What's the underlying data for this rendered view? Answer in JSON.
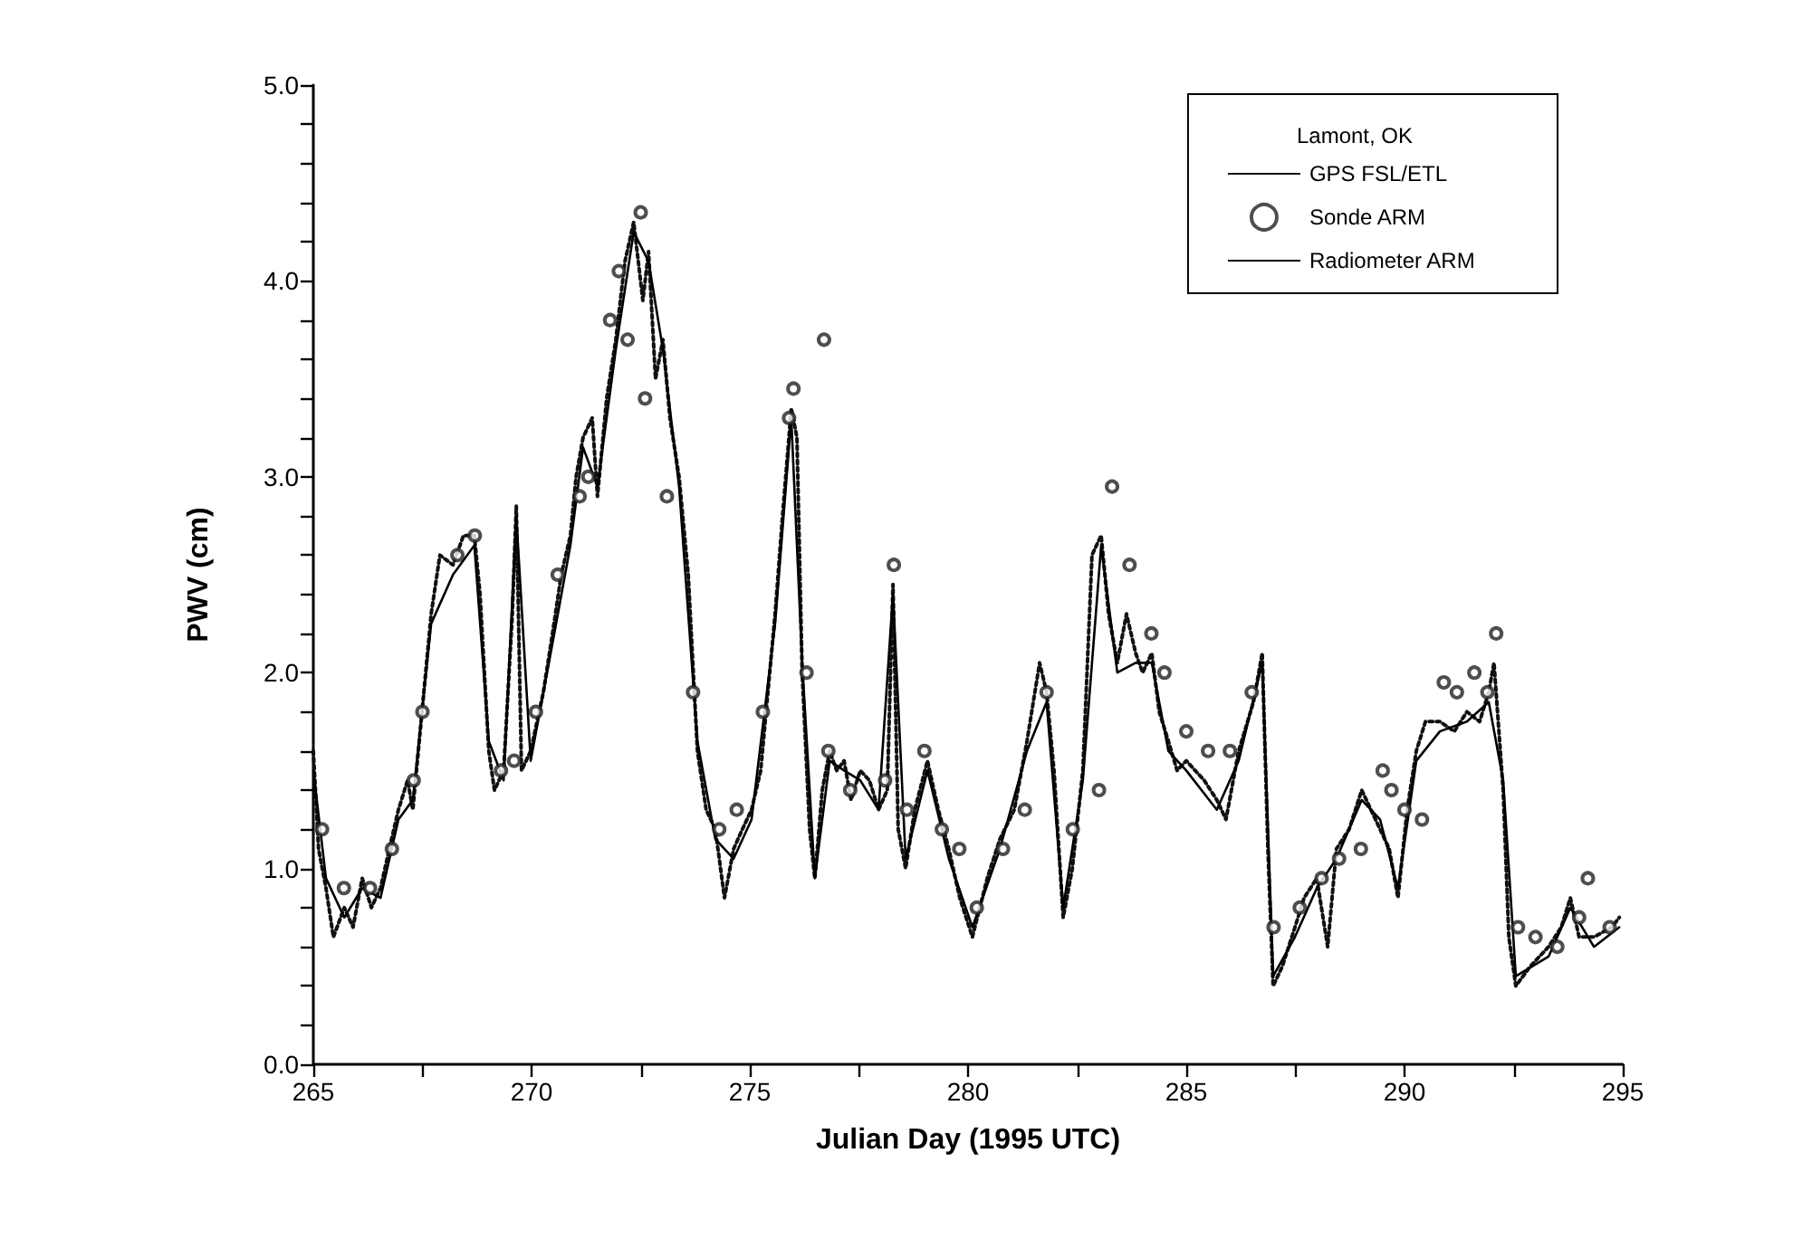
{
  "chart_data": {
    "type": "line",
    "xlabel": "Julian Day (1995 UTC)",
    "ylabel": "PWV (cm)",
    "legend_title": "Lamont, OK",
    "legend": "top right",
    "grid": false,
    "xlim": [
      265,
      295
    ],
    "xticks": [
      265,
      {
        "value": 267.5,
        "label": null
      },
      270,
      {
        "value": 272.5,
        "label": null
      },
      275,
      {
        "value": 277.5,
        "label": null
      },
      280,
      {
        "value": 282.5,
        "label": null
      },
      285,
      {
        "value": 287.5,
        "label": null
      },
      290,
      {
        "value": 292.5,
        "label": null
      },
      295
    ],
    "ylim": [
      0,
      5
    ],
    "yticks": [
      {
        "value": 0,
        "label": "0.0"
      },
      {
        "value": 0.2,
        "label": null
      },
      {
        "value": 0.4,
        "label": null
      },
      {
        "value": 0.6,
        "label": null
      },
      {
        "value": 0.8,
        "label": null
      },
      {
        "value": 1,
        "label": "1.0"
      },
      {
        "value": 1.2,
        "label": null
      },
      {
        "value": 1.4,
        "label": null
      },
      {
        "value": 1.6,
        "label": null
      },
      {
        "value": 1.8,
        "label": null
      },
      {
        "value": 2,
        "label": "2.0"
      },
      {
        "value": 2.2,
        "label": null
      },
      {
        "value": 2.4,
        "label": null
      },
      {
        "value": 2.6,
        "label": null
      },
      {
        "value": 2.8,
        "label": null
      },
      {
        "value": 3,
        "label": "3.0"
      },
      {
        "value": 3.2,
        "label": null
      },
      {
        "value": 3.4,
        "label": null
      },
      {
        "value": 3.6,
        "label": null
      },
      {
        "value": 3.8,
        "label": null
      },
      {
        "value": 4,
        "label": "4.0"
      },
      {
        "value": 4.2,
        "label": null
      },
      {
        "value": 4.4,
        "label": null
      },
      {
        "value": 4.6,
        "label": null
      },
      {
        "value": 4.8,
        "label": null
      },
      {
        "value": 5,
        "label": "5.0"
      }
    ],
    "series": [
      {
        "name": "GPS FSL/ETL",
        "color": "#111111",
        "line_style": "dotted",
        "x": [
          265.0,
          265.12,
          265.29,
          265.46,
          265.71,
          265.91,
          266.12,
          266.33,
          266.54,
          266.74,
          266.95,
          267.16,
          267.28,
          267.49,
          267.7,
          267.9,
          268.2,
          268.44,
          268.69,
          268.82,
          269.02,
          269.15,
          269.36,
          269.56,
          269.65,
          269.77,
          269.98,
          270.27,
          270.48,
          270.68,
          270.89,
          271.02,
          271.18,
          271.39,
          271.51,
          271.72,
          271.93,
          272.14,
          272.34,
          272.55,
          272.68,
          272.84,
          273.01,
          273.17,
          273.38,
          273.59,
          273.8,
          274.0,
          274.21,
          274.42,
          274.63,
          274.83,
          275.04,
          275.25,
          275.58,
          275.75,
          275.95,
          276.08,
          276.2,
          276.37,
          276.49,
          276.66,
          276.83,
          276.99,
          277.16,
          277.32,
          277.53,
          277.74,
          277.95,
          278.15,
          278.28,
          278.4,
          278.57,
          278.78,
          279.07,
          279.32,
          279.56,
          279.81,
          280.1,
          280.44,
          280.73,
          281.06,
          281.35,
          281.64,
          281.8,
          281.97,
          282.18,
          282.39,
          282.63,
          282.84,
          283.05,
          283.22,
          283.42,
          283.63,
          283.84,
          284.0,
          284.21,
          284.38,
          284.59,
          284.79,
          285.0,
          285.41,
          285.7,
          285.91,
          286.2,
          286.54,
          286.74,
          286.87,
          286.99,
          287.2,
          287.49,
          287.7,
          287.99,
          288.24,
          288.44,
          288.73,
          289.02,
          289.23,
          289.44,
          289.65,
          289.85,
          290.06,
          290.27,
          290.48,
          290.81,
          291.14,
          291.43,
          291.72,
          291.93,
          292.05,
          292.26,
          292.39,
          292.55,
          292.88,
          293.3,
          293.59,
          293.8,
          294.0,
          294.34,
          294.75,
          294.92
        ],
        "values": [
          1.6,
          1.1,
          0.9,
          0.65,
          0.8,
          0.7,
          0.95,
          0.8,
          0.9,
          1.1,
          1.3,
          1.45,
          1.3,
          1.8,
          2.3,
          2.6,
          2.55,
          2.7,
          2.7,
          2.4,
          1.6,
          1.4,
          1.5,
          2.3,
          2.85,
          1.5,
          1.6,
          1.9,
          2.2,
          2.5,
          2.7,
          3.0,
          3.2,
          3.3,
          2.9,
          3.4,
          3.7,
          4.1,
          4.3,
          3.9,
          4.15,
          3.5,
          3.7,
          3.3,
          3.0,
          2.5,
          1.6,
          1.3,
          1.2,
          0.85,
          1.1,
          1.2,
          1.3,
          1.5,
          2.3,
          2.8,
          3.35,
          3.2,
          2.0,
          1.2,
          0.95,
          1.4,
          1.6,
          1.5,
          1.55,
          1.35,
          1.5,
          1.45,
          1.3,
          1.4,
          2.45,
          1.2,
          1.0,
          1.3,
          1.55,
          1.3,
          1.1,
          0.85,
          0.65,
          0.95,
          1.15,
          1.3,
          1.65,
          2.05,
          1.9,
          1.5,
          0.75,
          1.0,
          1.5,
          2.6,
          2.7,
          2.3,
          2.05,
          2.3,
          2.1,
          2.0,
          2.1,
          1.8,
          1.65,
          1.5,
          1.55,
          1.45,
          1.35,
          1.25,
          1.6,
          1.85,
          2.1,
          1.1,
          0.4,
          0.5,
          0.7,
          0.85,
          0.95,
          0.6,
          1.1,
          1.2,
          1.4,
          1.3,
          1.2,
          1.1,
          0.85,
          1.3,
          1.6,
          1.75,
          1.75,
          1.7,
          1.8,
          1.75,
          1.9,
          2.05,
          1.4,
          0.65,
          0.4,
          0.5,
          0.6,
          0.7,
          0.85,
          0.65,
          0.65,
          0.7,
          0.75
        ]
      },
      {
        "name": "Sonde ARM",
        "type": "scatter",
        "color": "#222222",
        "marker": "circle",
        "x": [
          265.2,
          265.7,
          266.3,
          266.8,
          267.3,
          267.5,
          268.3,
          268.7,
          269.3,
          269.6,
          270.1,
          270.6,
          271.1,
          271.3,
          271.8,
          272.0,
          272.2,
          272.5,
          272.6,
          273.1,
          273.7,
          274.3,
          274.7,
          275.3,
          275.9,
          276.0,
          276.3,
          276.7,
          276.8,
          277.3,
          278.1,
          278.3,
          278.6,
          279.0,
          279.4,
          279.8,
          280.2,
          280.8,
          281.3,
          281.8,
          282.4,
          283.0,
          283.3,
          283.7,
          284.2,
          284.5,
          285.0,
          285.5,
          286.0,
          286.5,
          287.0,
          287.6,
          288.1,
          288.5,
          289.0,
          289.5,
          289.7,
          290.0,
          290.4,
          290.9,
          291.2,
          291.6,
          291.9,
          292.1,
          292.6,
          293.0,
          293.5,
          294.0,
          294.2,
          294.7
        ],
        "values": [
          1.2,
          0.9,
          0.9,
          1.1,
          1.45,
          1.8,
          2.6,
          2.7,
          1.5,
          1.55,
          1.8,
          2.5,
          2.9,
          3.0,
          3.8,
          4.05,
          3.7,
          4.35,
          3.4,
          2.9,
          1.9,
          1.2,
          1.3,
          1.8,
          3.3,
          3.45,
          2.0,
          3.7,
          1.6,
          1.4,
          1.45,
          2.55,
          1.3,
          1.6,
          1.2,
          1.1,
          0.8,
          1.1,
          1.3,
          1.9,
          1.2,
          1.4,
          2.95,
          2.55,
          2.2,
          2.0,
          1.7,
          1.6,
          1.6,
          1.9,
          0.7,
          0.8,
          0.95,
          1.05,
          1.1,
          1.5,
          1.4,
          1.3,
          1.25,
          1.95,
          1.9,
          2.0,
          1.9,
          2.2,
          0.7,
          0.65,
          0.6,
          0.75,
          0.95,
          0.7
        ]
      },
      {
        "name": "Radiometer ARM",
        "color": "#000000",
        "line_style": "solid",
        "x": [
          265.0,
          265.29,
          265.71,
          266.12,
          266.54,
          266.95,
          267.28,
          267.7,
          268.2,
          268.69,
          269.02,
          269.36,
          269.65,
          269.98,
          270.48,
          270.89,
          271.18,
          271.51,
          271.93,
          272.34,
          272.68,
          273.01,
          273.38,
          273.8,
          274.21,
          274.63,
          275.04,
          275.58,
          275.95,
          276.2,
          276.49,
          276.83,
          277.16,
          277.53,
          277.95,
          278.28,
          278.57,
          279.07,
          279.56,
          280.1,
          280.73,
          281.35,
          281.8,
          282.18,
          282.63,
          283.05,
          283.42,
          283.84,
          284.21,
          284.59,
          285.0,
          285.7,
          286.2,
          286.74,
          286.99,
          287.49,
          287.99,
          288.44,
          289.02,
          289.44,
          289.85,
          290.27,
          290.81,
          291.43,
          291.93,
          292.26,
          292.55,
          293.3,
          293.8,
          294.34,
          294.92
        ],
        "values": [
          1.5,
          0.95,
          0.75,
          0.9,
          0.85,
          1.25,
          1.35,
          2.25,
          2.5,
          2.65,
          1.65,
          1.45,
          2.8,
          1.55,
          2.15,
          2.65,
          3.15,
          2.95,
          3.65,
          4.25,
          4.1,
          3.65,
          2.95,
          1.65,
          1.15,
          1.05,
          1.25,
          2.25,
          3.3,
          2.05,
          0.95,
          1.55,
          1.5,
          1.45,
          1.3,
          2.4,
          1.05,
          1.5,
          1.05,
          0.7,
          1.1,
          1.6,
          1.85,
          0.8,
          1.45,
          2.65,
          2.0,
          2.05,
          2.05,
          1.6,
          1.5,
          1.3,
          1.55,
          2.05,
          0.45,
          0.65,
          0.9,
          1.05,
          1.35,
          1.25,
          0.9,
          1.55,
          1.7,
          1.75,
          1.85,
          1.45,
          0.45,
          0.55,
          0.8,
          0.6,
          0.7
        ]
      }
    ]
  }
}
